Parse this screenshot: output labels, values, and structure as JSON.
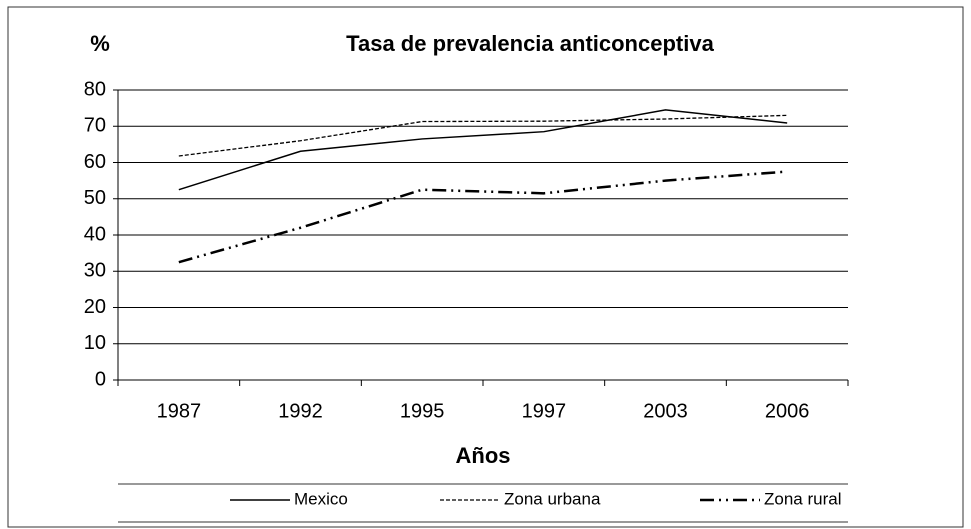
{
  "chart_data": {
    "type": "line",
    "title": "Tasa de prevalencia anticonceptiva",
    "y_label": "%",
    "x_label": "Años",
    "categories": [
      "1987",
      "1992",
      "1995",
      "1997",
      "2003",
      "2006"
    ],
    "series": [
      {
        "name": "Mexico",
        "color": "#000000",
        "dash": "solid",
        "values": [
          52.5,
          63.1,
          66.5,
          68.5,
          74.5,
          70.9
        ]
      },
      {
        "name": "Zona urbana",
        "color": "#000000",
        "dash": "dashed",
        "values": [
          61.8,
          66.0,
          71.3,
          71.4,
          72.0,
          73.0
        ]
      },
      {
        "name": "Zona rural",
        "color": "#000000",
        "dash": "dash-dot-dot",
        "values": [
          32.5,
          42.0,
          52.5,
          51.5,
          55.0,
          57.5
        ]
      }
    ],
    "ylim": [
      0,
      80
    ],
    "yticks": [
      0,
      10,
      20,
      30,
      40,
      50,
      60,
      70,
      80
    ],
    "grid": true
  }
}
